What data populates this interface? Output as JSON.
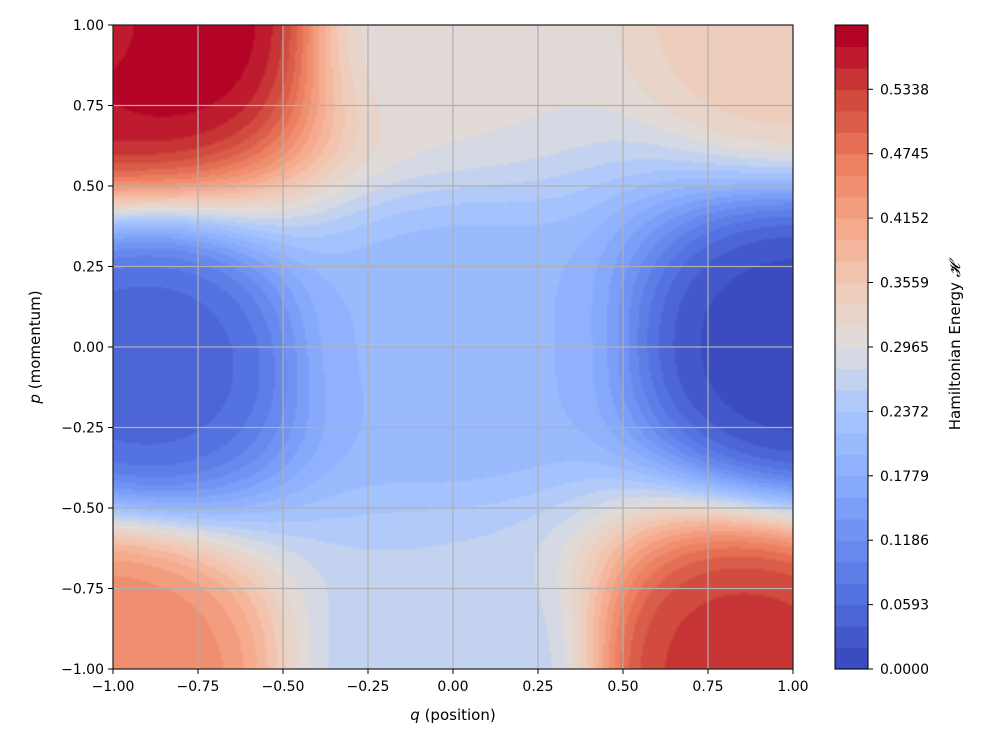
{
  "chart_data": {
    "type": "heatmap",
    "subtype": "filled-contour",
    "title": "",
    "xlabel": {
      "var": "q",
      "text": " (position)"
    },
    "ylabel": {
      "var": "p",
      "text": " (momentum)"
    },
    "xlim": [
      -1.0,
      1.0
    ],
    "ylim": [
      -1.0,
      1.0
    ],
    "grid": true,
    "colormap": "coolwarm",
    "levels": 30,
    "z_range": [
      0.0,
      0.593
    ],
    "x_ticks": [
      "−1.00",
      "−0.75",
      "−0.50",
      "−0.25",
      "0.00",
      "0.25",
      "0.50",
      "0.75",
      "1.00"
    ],
    "x_tick_values": [
      -1.0,
      -0.75,
      -0.5,
      -0.25,
      0.0,
      0.25,
      0.5,
      0.75,
      1.0
    ],
    "y_ticks": [
      "−1.00",
      "−0.75",
      "−0.50",
      "−0.25",
      "0.00",
      "0.25",
      "0.50",
      "0.75",
      "1.00"
    ],
    "y_tick_values": [
      -1.0,
      -0.75,
      -0.5,
      -0.25,
      0.0,
      0.25,
      0.5,
      0.75,
      1.0
    ],
    "colorbar": {
      "label": "Hamiltonian Energy ",
      "label_symbol": "𝓗",
      "ticks": [
        "0.0000",
        "0.0593",
        "0.1186",
        "0.1779",
        "0.2372",
        "0.2965",
        "0.3559",
        "0.4152",
        "0.4745",
        "0.5338"
      ],
      "tick_values": [
        0.0,
        0.0593,
        0.1186,
        0.1779,
        0.2372,
        0.2965,
        0.3559,
        0.4152,
        0.4745,
        0.5338
      ]
    },
    "surface_samples": [
      {
        "q": -1.0,
        "p": 1.0,
        "H": 0.57
      },
      {
        "q": -0.85,
        "p": 1.0,
        "H": 0.59
      },
      {
        "q": 1.0,
        "p": 1.0,
        "H": 0.35
      },
      {
        "q": 0.85,
        "p": -1.0,
        "H": 0.54
      },
      {
        "q": -1.0,
        "p": -1.0,
        "H": 0.45
      },
      {
        "q": 1.0,
        "p": 0.0,
        "H": 0.01
      },
      {
        "q": -0.9,
        "p": -0.05,
        "H": 0.05
      },
      {
        "q": 0.0,
        "p": 0.0,
        "H": 0.2
      },
      {
        "q": 0.0,
        "p": 1.0,
        "H": 0.3
      },
      {
        "q": 0.0,
        "p": -1.0,
        "H": 0.26
      }
    ]
  }
}
